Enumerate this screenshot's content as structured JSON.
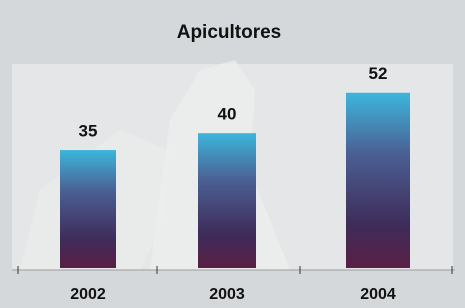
{
  "chart_data": {
    "type": "bar",
    "title": "Apicultores",
    "categories": [
      "2002",
      "2003",
      "2004"
    ],
    "values": [
      35,
      40,
      52
    ]
  }
}
